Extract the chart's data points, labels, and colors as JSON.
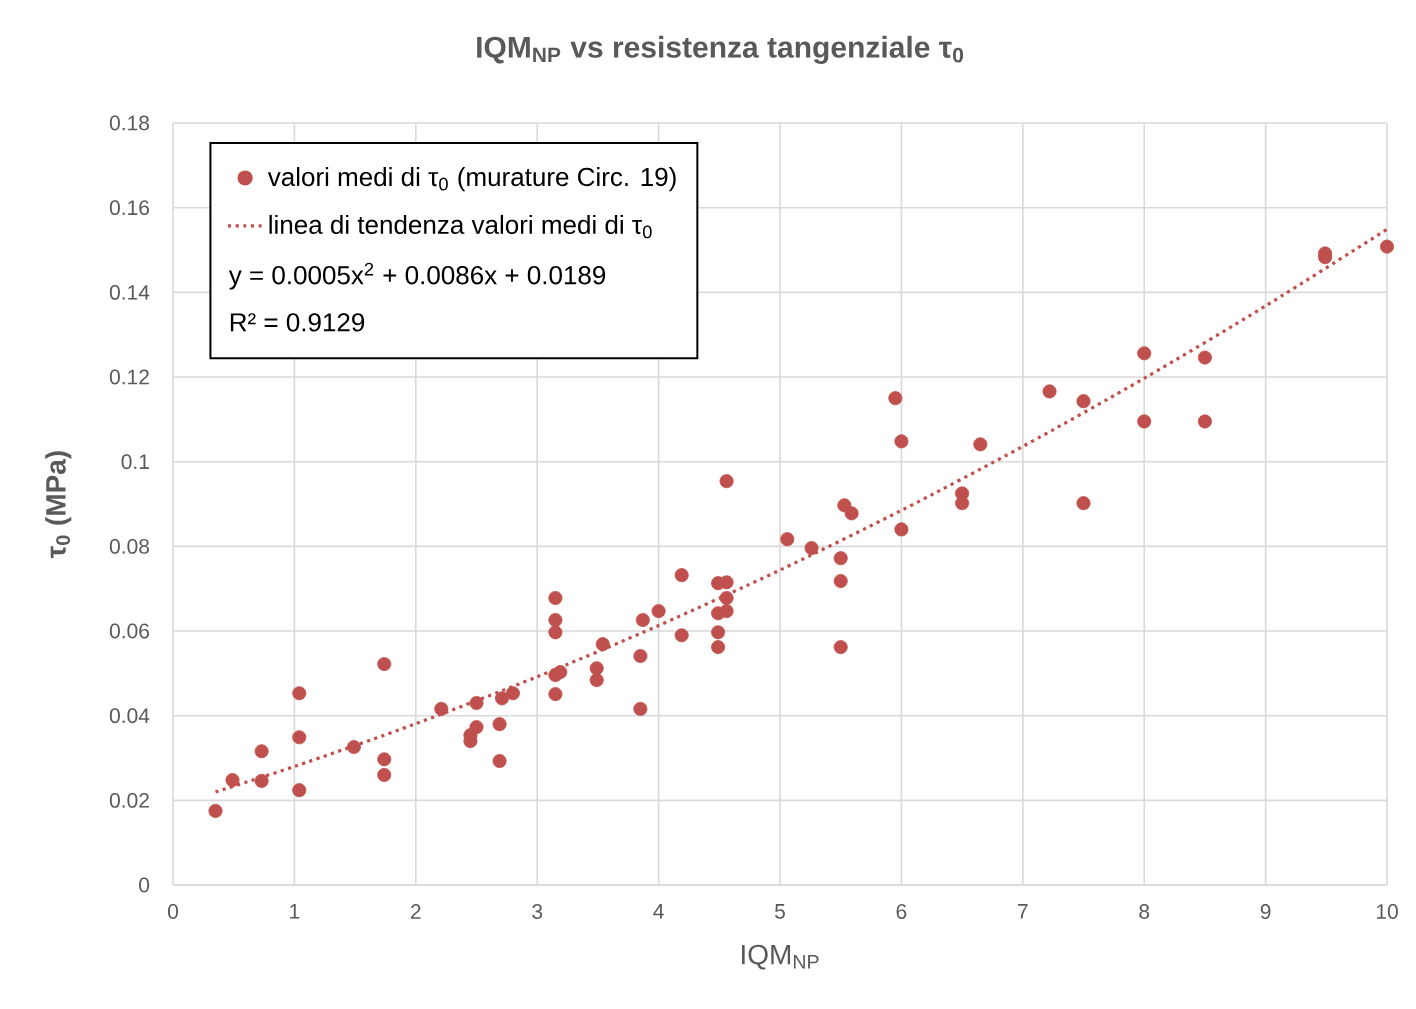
{
  "chart_data": {
    "type": "scatter",
    "title": "IQM$_{NP}$ vs  resistenza tangenziale τ$_{0}$",
    "xlabel": "IQM$_{NP}$",
    "ylabel": "τ$_{0}$   (MPa)",
    "xlim": [
      0,
      10
    ],
    "ylim": [
      0,
      0.18
    ],
    "xticks": [
      0,
      1,
      2,
      3,
      4,
      5,
      6,
      7,
      8,
      9,
      10
    ],
    "yticks": [
      0,
      0.02,
      0.04,
      0.06,
      0.08,
      0.1,
      0.12,
      0.14,
      0.16,
      0.18
    ],
    "grid": true,
    "legend": "top left",
    "annotations": [
      "y = 0.0005x$^{2}$ + 0.0086x + 0.0189",
      "R² = 0.9129"
    ],
    "series": [
      {
        "name": "valori medi di τ$_{0}$ (murature Circ. 19)",
        "marker": "circle",
        "color": "#c0504d",
        "x": [
          0.35,
          0.49,
          0.73,
          0.73,
          1.04,
          1.04,
          1.04,
          1.49,
          1.74,
          1.74,
          1.74,
          2.21,
          2.45,
          2.45,
          2.5,
          2.5,
          2.69,
          2.69,
          2.71,
          2.8,
          3.15,
          3.15,
          3.15,
          3.15,
          3.19,
          3.15,
          3.49,
          3.49,
          3.54,
          3.85,
          3.85,
          3.87,
          4.0,
          4.19,
          4.19,
          4.56,
          4.49,
          4.56,
          4.56,
          4.49,
          4.56,
          4.49,
          4.49,
          5.06,
          5.26,
          5.5,
          5.5,
          5.5,
          5.53,
          5.59,
          5.95,
          6.0,
          6.0,
          6.5,
          6.5,
          6.65,
          7.22,
          7.5,
          7.5,
          8.0,
          8.0,
          8.5,
          8.5,
          9.49,
          9.49,
          10.0
        ],
        "values": [
          0.0175,
          0.0248,
          0.0316,
          0.0246,
          0.0453,
          0.0349,
          0.0224,
          0.0326,
          0.0522,
          0.0297,
          0.026,
          0.0416,
          0.0354,
          0.034,
          0.0373,
          0.043,
          0.038,
          0.0293,
          0.0441,
          0.0453,
          0.0678,
          0.0626,
          0.0597,
          0.0496,
          0.0503,
          0.0451,
          0.0512,
          0.0484,
          0.0569,
          0.0416,
          0.0541,
          0.0626,
          0.0647,
          0.0732,
          0.059,
          0.0954,
          0.0713,
          0.0715,
          0.0678,
          0.0642,
          0.0647,
          0.0597,
          0.0562,
          0.0817,
          0.0796,
          0.0772,
          0.0718,
          0.0562,
          0.0897,
          0.0878,
          0.115,
          0.1048,
          0.084,
          0.0925,
          0.0902,
          0.1041,
          0.1166,
          0.1143,
          0.0902,
          0.1256,
          0.1095,
          0.1246,
          0.1095,
          0.1492,
          0.1483,
          0.1508
        ]
      },
      {
        "name": "linea di tendenza valori medi di τ$_{0}$",
        "type": "line",
        "marker": "none",
        "line_style": "dotted",
        "color": "#c0504d",
        "x": [
          0.35,
          1,
          2,
          3,
          4,
          5,
          6,
          7,
          8,
          9,
          10
        ],
        "values": [
          0.022,
          0.028,
          0.0381,
          0.0492,
          0.0613,
          0.0744,
          0.0885,
          0.1036,
          0.1197,
          0.1368,
          0.1549
        ]
      }
    ]
  }
}
